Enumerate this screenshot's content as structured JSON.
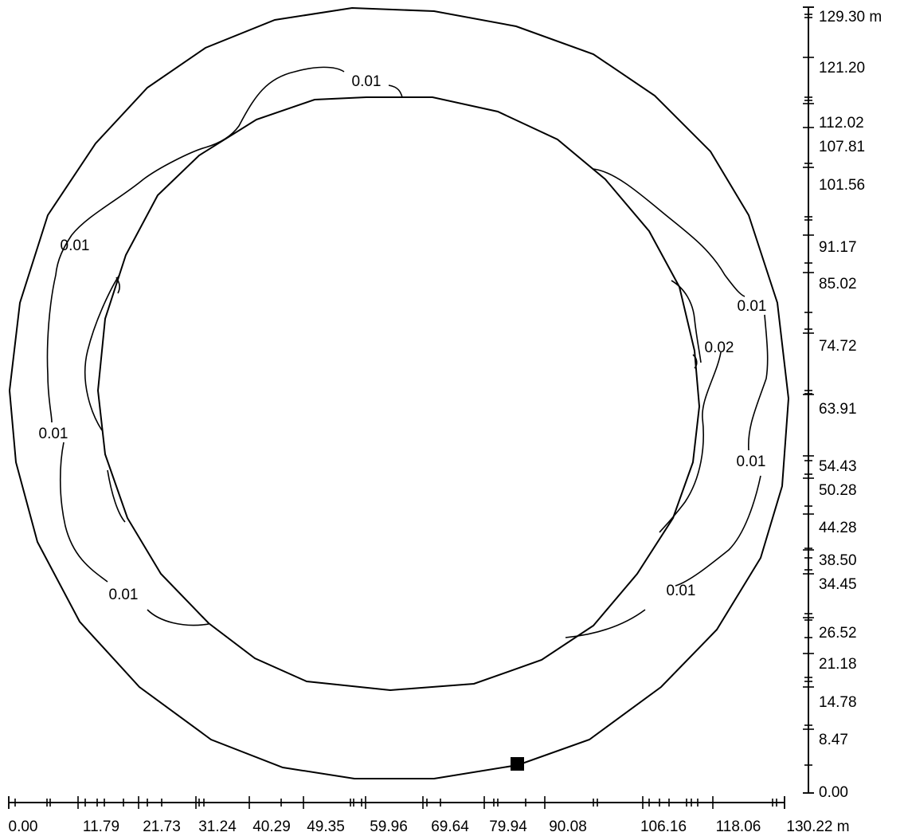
{
  "diagram": {
    "contour_labels": [
      "0.01",
      "0.01",
      "0.01",
      "0.01",
      "0.01",
      "0.01",
      "0.02",
      "0.01"
    ],
    "source_marker": "square-marker"
  },
  "axes": {
    "x": {
      "unit": "m",
      "tick_labels": [
        "0.00",
        "11.79",
        "21.73",
        "31.24",
        "40.29",
        "49.35",
        "59.96",
        "69.64",
        "79.94",
        "90.08",
        "106.16",
        "118.06",
        "130.22 m"
      ]
    },
    "y": {
      "unit": "m",
      "tick_labels": [
        "129.30 m",
        "121.20",
        "112.02",
        "107.81",
        "101.56",
        "91.17",
        "85.02",
        "74.72",
        "63.91",
        "54.43",
        "50.28",
        "44.28",
        "38.50",
        "34.45",
        "26.52",
        "21.18",
        "14.78",
        "8.47",
        "0.00"
      ]
    }
  }
}
